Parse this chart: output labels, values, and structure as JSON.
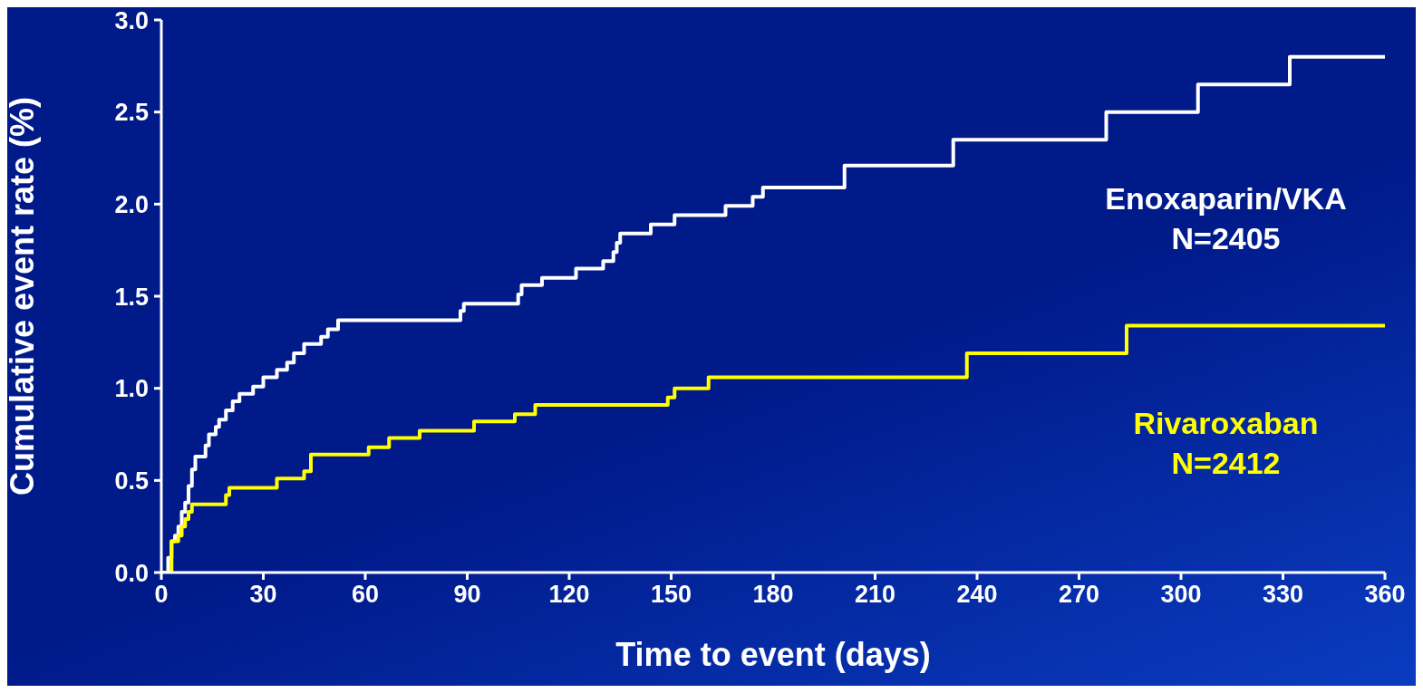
{
  "chart_data": {
    "type": "step",
    "xlabel": "Time to event (days)",
    "ylabel": "Cumulative event rate (%)",
    "xlim": [
      0,
      360
    ],
    "xticks": [
      0,
      30,
      60,
      90,
      120,
      150,
      180,
      210,
      240,
      270,
      300,
      330,
      360
    ],
    "ylim": [
      0,
      3.0
    ],
    "yticks": [
      {
        "value": 0,
        "label": "0.0"
      },
      {
        "value": 0.5,
        "label": "0.5"
      },
      {
        "value": 1,
        "label": "1.0"
      },
      {
        "value": 1.5,
        "label": "1.5"
      },
      {
        "value": 2,
        "label": "2.0"
      },
      {
        "value": 2.5,
        "label": "2.5"
      },
      {
        "value": 3,
        "label": "3.0"
      }
    ],
    "grid": false,
    "legend": false,
    "marker": "none",
    "line_style": "solid",
    "annotations": [
      "N=2405",
      "N=2412"
    ],
    "series": [
      {
        "name": "Enoxaparin/VKA",
        "color": "#ffffff",
        "x": [
          0,
          2,
          3,
          4,
          5,
          6,
          7,
          8,
          9,
          10,
          13,
          14,
          16,
          17,
          19,
          21,
          23,
          27,
          30,
          34,
          37,
          39,
          42,
          47,
          49,
          52,
          88,
          89,
          105,
          106,
          112,
          122,
          130,
          133,
          134,
          135,
          144,
          151,
          166,
          174,
          177,
          201,
          233,
          278,
          305,
          332,
          360
        ],
        "values": [
          0,
          0.08,
          0.17,
          0.2,
          0.25,
          0.33,
          0.38,
          0.47,
          0.56,
          0.63,
          0.69,
          0.75,
          0.79,
          0.83,
          0.88,
          0.93,
          0.97,
          1.01,
          1.06,
          1.1,
          1.14,
          1.19,
          1.24,
          1.28,
          1.32,
          1.37,
          1.42,
          1.46,
          1.51,
          1.56,
          1.6,
          1.65,
          1.69,
          1.74,
          1.79,
          1.84,
          1.89,
          1.94,
          1.99,
          2.04,
          2.09,
          2.21,
          2.35,
          2.5,
          2.65,
          2.8,
          2.8
        ]
      },
      {
        "name": "Rivaroxaban",
        "color": "#ffff00",
        "x": [
          0,
          3,
          5,
          6,
          7,
          8,
          9,
          19,
          20,
          34,
          42,
          44,
          61,
          67,
          76,
          92,
          104,
          110,
          149,
          151,
          161,
          237,
          284,
          360
        ],
        "values": [
          0,
          0.17,
          0.2,
          0.25,
          0.29,
          0.33,
          0.37,
          0.42,
          0.46,
          0.51,
          0.55,
          0.64,
          0.68,
          0.73,
          0.77,
          0.82,
          0.86,
          0.91,
          0.95,
          1.0,
          1.06,
          1.19,
          1.34,
          1.34
        ]
      }
    ]
  }
}
